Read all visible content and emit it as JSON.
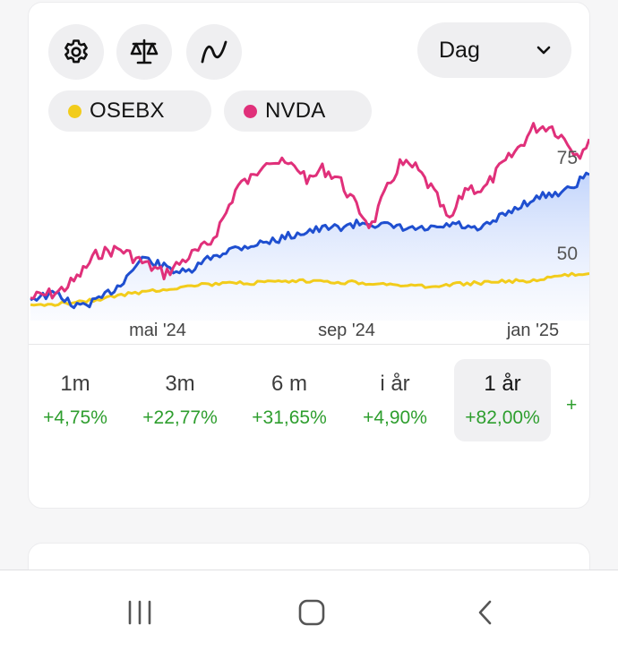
{
  "toolbar": {
    "icons": [
      "gear-icon",
      "scale-icon",
      "wave-icon"
    ],
    "interval_label": "Dag"
  },
  "legend": [
    {
      "label": "OSEBX",
      "color": "#f2cc1b"
    },
    {
      "label": "NVDA",
      "color": "#e0307a"
    }
  ],
  "chart_data": {
    "type": "line",
    "x_ticks": [
      "mai '24",
      "sep '24",
      "jan '25"
    ],
    "y_ticks": [
      50,
      75
    ],
    "series": [
      {
        "name": "NVDA",
        "color": "#e0307a"
      },
      {
        "name": "",
        "color": "#1f4fd0",
        "fill": true
      },
      {
        "name": "OSEBX",
        "color": "#f2cc1b"
      }
    ]
  },
  "periods": [
    {
      "label": "1m",
      "change": "+4,75%"
    },
    {
      "label": "3m",
      "change": "+22,77%"
    },
    {
      "label": "6 m",
      "change": "+31,65%"
    },
    {
      "label": "i år",
      "change": "+4,90%"
    },
    {
      "label": "1 år",
      "change": "+82,00%",
      "active": true
    },
    {
      "label": "",
      "change": "+"
    }
  ],
  "nav": [
    "recents-icon",
    "home-icon",
    "back-icon"
  ]
}
